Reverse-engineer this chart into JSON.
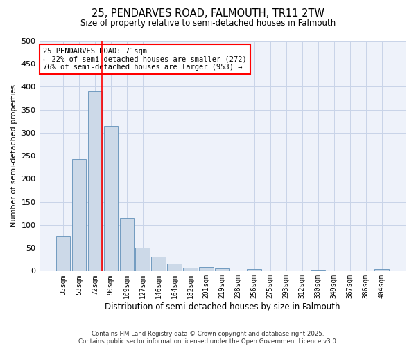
{
  "title_line1": "25, PENDARVES ROAD, FALMOUTH, TR11 2TW",
  "title_line2": "Size of property relative to semi-detached houses in Falmouth",
  "xlabel": "Distribution of semi-detached houses by size in Falmouth",
  "ylabel": "Number of semi-detached properties",
  "categories": [
    "35sqm",
    "53sqm",
    "72sqm",
    "90sqm",
    "109sqm",
    "127sqm",
    "146sqm",
    "164sqm",
    "182sqm",
    "201sqm",
    "219sqm",
    "238sqm",
    "256sqm",
    "275sqm",
    "293sqm",
    "312sqm",
    "330sqm",
    "349sqm",
    "367sqm",
    "386sqm",
    "404sqm"
  ],
  "values": [
    75,
    242,
    390,
    315,
    115,
    50,
    30,
    15,
    6,
    8,
    5,
    0,
    3,
    0,
    0,
    0,
    2,
    0,
    0,
    0,
    4
  ],
  "bar_color": "#ccd9e8",
  "bar_edge_color": "#6090b8",
  "red_line_x": 2.45,
  "annotation_text_line1": "25 PENDARVES ROAD: 71sqm",
  "annotation_text_line2": "← 22% of semi-detached houses are smaller (272)",
  "annotation_text_line3": "76% of semi-detached houses are larger (953) →",
  "ylim": [
    0,
    500
  ],
  "yticks": [
    0,
    50,
    100,
    150,
    200,
    250,
    300,
    350,
    400,
    450,
    500
  ],
  "footer_line1": "Contains HM Land Registry data © Crown copyright and database right 2025.",
  "footer_line2": "Contains public sector information licensed under the Open Government Licence v3.0.",
  "grid_color": "#c8d4e8",
  "background_color": "#eef2fa"
}
